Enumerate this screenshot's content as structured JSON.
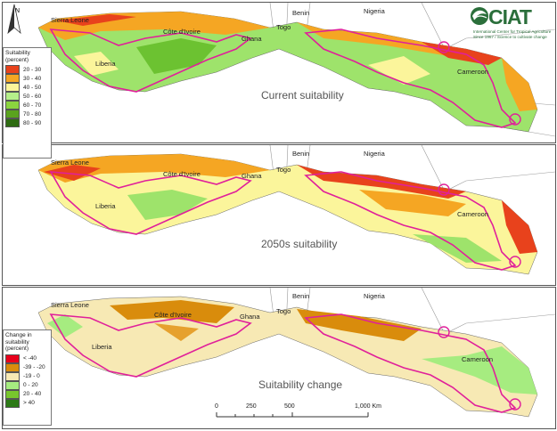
{
  "logo": {
    "name": "CIAT",
    "subtitle_line1": "International Center for Tropical Agriculture",
    "subtitle_line2": "Since 1967 / Science to cultivate change"
  },
  "north_label": "N",
  "panels": [
    {
      "title": "Current suitability",
      "countries": {
        "sierra_leone": "Sierra Leone",
        "cote_divoire": "Côte d'Ivoire",
        "liberia": "Liberia",
        "ghana": "Ghana",
        "togo": "Togo",
        "benin": "Benin",
        "nigeria": "Nigeria",
        "cameroon": "Cameroon"
      }
    },
    {
      "title": "2050s suitability",
      "countries": {
        "sierra_leone": "Sierra Leone",
        "cote_divoire": "Côte d'Ivoire",
        "liberia": "Liberia",
        "ghana": "Ghana",
        "togo": "Togo",
        "benin": "Benin",
        "nigeria": "Nigeria",
        "cameroon": "Cameroon"
      }
    },
    {
      "title": "Suitability change",
      "countries": {
        "sierra_leone": "Sierra Leone",
        "cote_divoire": "Côte d'Ivoire",
        "liberia": "Liberia",
        "ghana": "Ghana",
        "togo": "Togo",
        "benin": "Benin",
        "nigeria": "Nigeria",
        "cameroon": "Cameroon"
      }
    }
  ],
  "legend_suitability": {
    "title": "Suitability (percent)",
    "items": [
      {
        "label": "20 - 30",
        "color": "#e8421c"
      },
      {
        "label": "30 - 40",
        "color": "#f5a623"
      },
      {
        "label": "40 - 50",
        "color": "#fbf59b"
      },
      {
        "label": "50 - 60",
        "color": "#b5ef8a"
      },
      {
        "label": "60 - 70",
        "color": "#8bd43e"
      },
      {
        "label": "70 - 80",
        "color": "#5aa31e"
      },
      {
        "label": "80 - 90",
        "color": "#2e6b12"
      }
    ]
  },
  "legend_change": {
    "title": "Change in suitability (percent)",
    "items": [
      {
        "label": "< -40",
        "color": "#e8001c"
      },
      {
        "label": "-39 - -20",
        "color": "#d98c0c"
      },
      {
        "label": "-19 - 0",
        "color": "#f7e9b4"
      },
      {
        "label": "0 - 20",
        "color": "#a6ec80"
      },
      {
        "label": "20 - 40",
        "color": "#78c62d"
      },
      {
        "label": "> 40",
        "color": "#2c7a16"
      }
    ]
  },
  "scale_bar": {
    "ticks": [
      "0",
      "250",
      "500",
      "1,000 Km"
    ]
  }
}
